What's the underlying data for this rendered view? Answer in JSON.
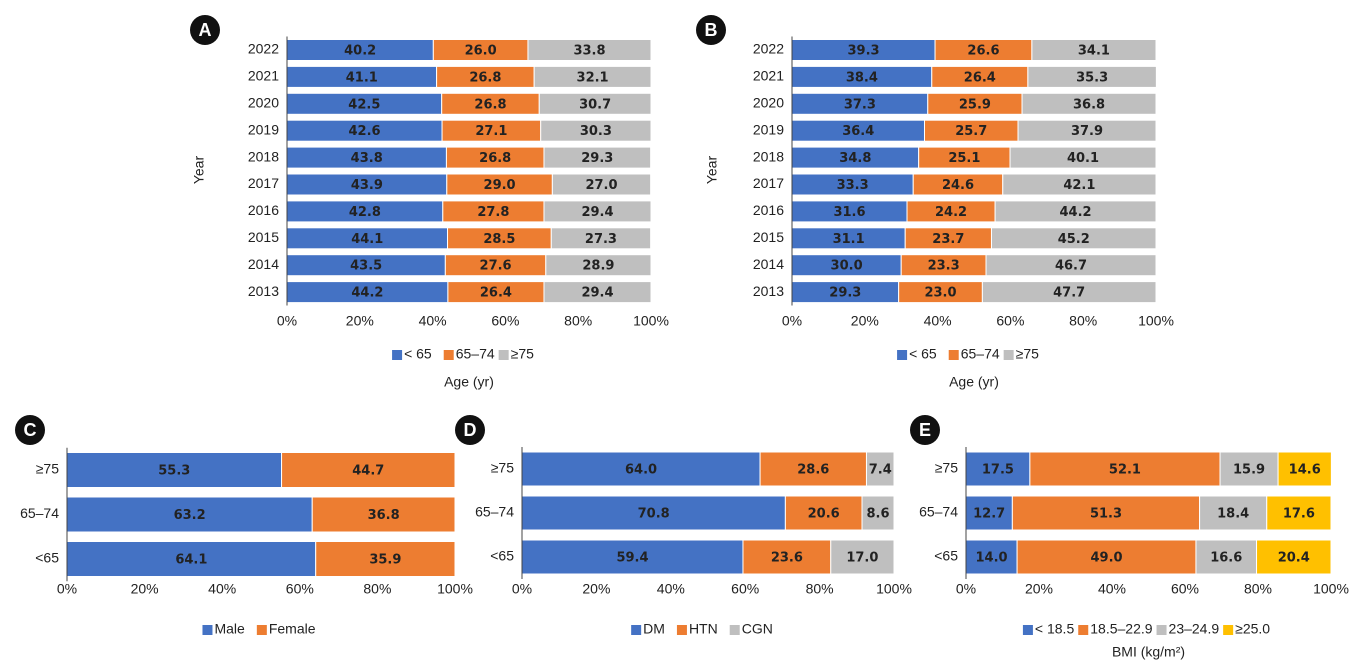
{
  "chart_data": [
    {
      "type": "bar",
      "orientation": "horizontal",
      "stacked": true,
      "panel": "A",
      "ylabel": "Year",
      "xlabel": "Age (yr)",
      "legend": "bottom",
      "grid": false,
      "categories": [
        "2022",
        "2021",
        "2020",
        "2019",
        "2018",
        "2017",
        "2016",
        "2015",
        "2014",
        "2013"
      ],
      "series": [
        {
          "name": "< 65",
          "color": "#4472c4",
          "values": [
            40.2,
            41.1,
            42.5,
            42.6,
            43.8,
            43.9,
            42.8,
            44.1,
            43.5,
            44.2
          ],
          "value_labels": [
            "40.2",
            "41.1",
            "42.5",
            "42.6",
            "43.8",
            "43.9",
            "42.8",
            "44.1",
            "43.5",
            "44.2"
          ]
        },
        {
          "name": "65–74",
          "color": "#ed7d31",
          "values": [
            26.0,
            26.8,
            26.8,
            27.1,
            26.8,
            29.0,
            27.8,
            28.5,
            27.6,
            26.4
          ],
          "value_labels": [
            "26.0",
            "26.8",
            "26.8",
            "27.1",
            "26.8",
            "29.0",
            "27.8",
            "28.5",
            "27.6",
            "26.4"
          ]
        },
        {
          "name": "≥75",
          "color": "#bfbfbf",
          "values": [
            33.8,
            32.1,
            30.7,
            30.3,
            29.3,
            27.0,
            29.4,
            27.3,
            28.9,
            29.4
          ],
          "value_labels": [
            "33.8",
            "32.1",
            "30.7",
            "30.3",
            "29.3",
            "27.0",
            "29.4",
            "27.3",
            "28.9",
            "29.4"
          ]
        }
      ],
      "xlim": [
        0,
        100
      ],
      "xticks": [
        {
          "value": 0,
          "label": "0%"
        },
        {
          "value": 20,
          "label": "20%"
        },
        {
          "value": 40,
          "label": "40%"
        },
        {
          "value": 60,
          "label": "60%"
        },
        {
          "value": 80,
          "label": "80%"
        },
        {
          "value": 100,
          "label": "100%"
        }
      ]
    },
    {
      "type": "bar",
      "orientation": "horizontal",
      "stacked": true,
      "panel": "B",
      "ylabel": "Year",
      "xlabel": "Age (yr)",
      "legend": "bottom",
      "grid": false,
      "categories": [
        "2022",
        "2021",
        "2020",
        "2019",
        "2018",
        "2017",
        "2016",
        "2015",
        "2014",
        "2013"
      ],
      "series": [
        {
          "name": "< 65",
          "color": "#4472c4",
          "values": [
            39.3,
            38.4,
            37.3,
            36.4,
            34.8,
            33.3,
            31.6,
            31.1,
            30.0,
            29.3
          ],
          "value_labels": [
            "39.3",
            "38.4",
            "37.3",
            "36.4",
            "34.8",
            "33.3",
            "31.6",
            "31.1",
            "30.0",
            "29.3"
          ]
        },
        {
          "name": "65–74",
          "color": "#ed7d31",
          "values": [
            26.6,
            26.4,
            25.9,
            25.7,
            25.1,
            24.6,
            24.2,
            23.7,
            23.3,
            23.0
          ],
          "value_labels": [
            "26.6",
            "26.4",
            "25.9",
            "25.7",
            "25.1",
            "24.6",
            "24.2",
            "23.7",
            "23.3",
            "23.0"
          ]
        },
        {
          "name": "≥75",
          "color": "#bfbfbf",
          "values": [
            34.1,
            35.3,
            36.8,
            37.9,
            40.1,
            42.1,
            44.2,
            45.2,
            46.7,
            47.7
          ],
          "value_labels": [
            "34.1",
            "35.3",
            "36.8",
            "37.9",
            "40.1",
            "42.1",
            "44.2",
            "45.2",
            "46.7",
            "47.7"
          ]
        }
      ],
      "xlim": [
        0,
        100
      ],
      "xticks": [
        {
          "value": 0,
          "label": "0%"
        },
        {
          "value": 20,
          "label": "20%"
        },
        {
          "value": 40,
          "label": "40%"
        },
        {
          "value": 60,
          "label": "60%"
        },
        {
          "value": 80,
          "label": "80%"
        },
        {
          "value": 100,
          "label": "100%"
        }
      ]
    },
    {
      "type": "bar",
      "orientation": "horizontal",
      "stacked": true,
      "panel": "C",
      "legend": "bottom",
      "grid": false,
      "categories": [
        "≥75",
        "65–74",
        "<65"
      ],
      "series": [
        {
          "name": "Male",
          "color": "#4472c4",
          "values": [
            55.3,
            63.2,
            64.1
          ],
          "value_labels": [
            "55.3",
            "63.2",
            "64.1"
          ]
        },
        {
          "name": "Female",
          "color": "#ed7d31",
          "values": [
            44.7,
            36.8,
            35.9
          ],
          "value_labels": [
            "44.7",
            "36.8",
            "35.9"
          ]
        }
      ],
      "xlim": [
        0,
        100
      ],
      "xticks": [
        {
          "value": 0,
          "label": "0%"
        },
        {
          "value": 20,
          "label": "20%"
        },
        {
          "value": 40,
          "label": "40%"
        },
        {
          "value": 60,
          "label": "60%"
        },
        {
          "value": 80,
          "label": "80%"
        },
        {
          "value": 100,
          "label": "100%"
        }
      ]
    },
    {
      "type": "bar",
      "orientation": "horizontal",
      "stacked": true,
      "panel": "D",
      "legend": "bottom",
      "grid": false,
      "categories": [
        "≥75",
        "65–74",
        "<65"
      ],
      "series": [
        {
          "name": "DM",
          "color": "#4472c4",
          "values": [
            64.0,
            70.8,
            59.4
          ],
          "value_labels": [
            "64.0",
            "70.8",
            "59.4"
          ]
        },
        {
          "name": "HTN",
          "color": "#ed7d31",
          "values": [
            28.6,
            20.6,
            23.6
          ],
          "value_labels": [
            "28.6",
            "20.6",
            "23.6"
          ]
        },
        {
          "name": "CGN",
          "color": "#bfbfbf",
          "values": [
            7.4,
            8.6,
            17.0
          ],
          "value_labels": [
            "7.4",
            "8.6",
            "17.0"
          ]
        }
      ],
      "xlim": [
        0,
        100
      ],
      "xticks": [
        {
          "value": 0,
          "label": "0%"
        },
        {
          "value": 20,
          "label": "20%"
        },
        {
          "value": 40,
          "label": "40%"
        },
        {
          "value": 60,
          "label": "60%"
        },
        {
          "value": 80,
          "label": "80%"
        },
        {
          "value": 100,
          "label": "100%"
        }
      ]
    },
    {
      "type": "bar",
      "orientation": "horizontal",
      "stacked": true,
      "panel": "E",
      "xlabel": "BMI (kg/m²)",
      "legend": "bottom",
      "grid": false,
      "categories": [
        "≥75",
        "65–74",
        "<65"
      ],
      "series": [
        {
          "name": "< 18.5",
          "color": "#4472c4",
          "values": [
            17.5,
            12.7,
            14.0
          ],
          "value_labels": [
            "17.5",
            "12.7",
            "14.0"
          ]
        },
        {
          "name": "18.5–22.9",
          "color": "#ed7d31",
          "values": [
            52.1,
            51.3,
            49.0
          ],
          "value_labels": [
            "52.1",
            "51.3",
            "49.0"
          ]
        },
        {
          "name": "23–24.9",
          "color": "#bfbfbf",
          "values": [
            15.9,
            18.4,
            16.6
          ],
          "value_labels": [
            "15.9",
            "18.4",
            "16.6"
          ]
        },
        {
          "name": "≥25.0",
          "color": "#ffc000",
          "values": [
            14.6,
            17.6,
            20.4
          ],
          "value_labels": [
            "14.6",
            "17.6",
            "20.4"
          ]
        }
      ],
      "xlim": [
        0,
        100
      ],
      "xticks": [
        {
          "value": 0,
          "label": "0%"
        },
        {
          "value": 20,
          "label": "20%"
        },
        {
          "value": 40,
          "label": "40%"
        },
        {
          "value": 60,
          "label": "60%"
        },
        {
          "value": 80,
          "label": "80%"
        },
        {
          "value": 100,
          "label": "100%"
        }
      ]
    }
  ]
}
